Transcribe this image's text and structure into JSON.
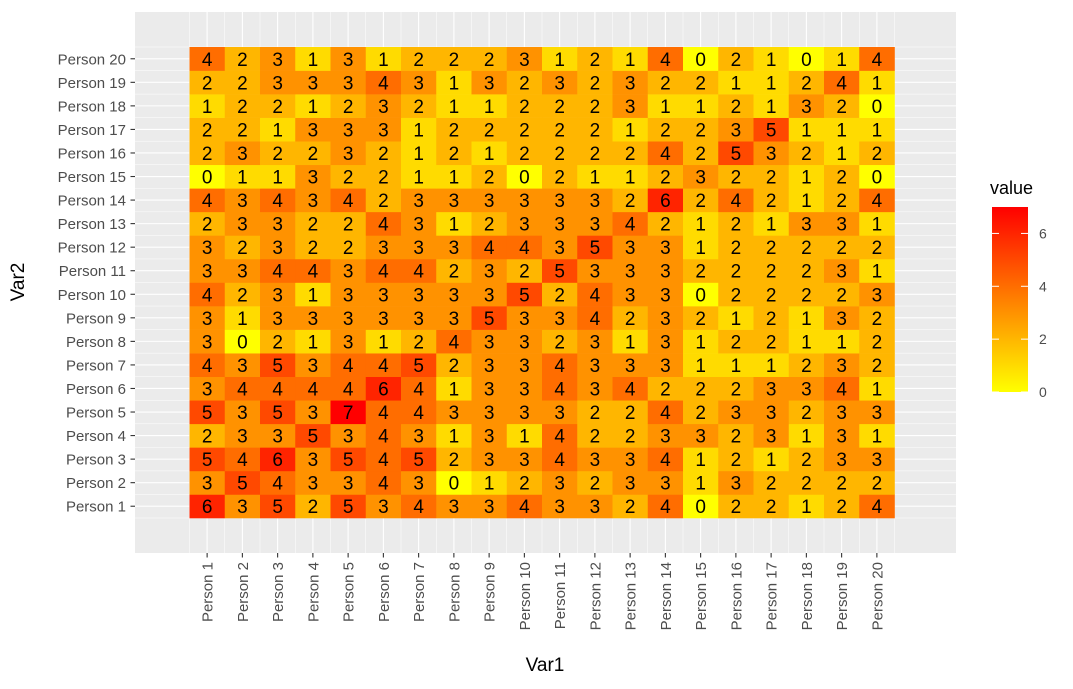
{
  "chart_data": {
    "type": "heatmap",
    "xlabel": "Var1",
    "ylabel": "Var2",
    "x_categories": [
      "Person 1",
      "Person 2",
      "Person 3",
      "Person 4",
      "Person 5",
      "Person 6",
      "Person 7",
      "Person 8",
      "Person 9",
      "Person 10",
      "Person 11",
      "Person 12",
      "Person 13",
      "Person 14",
      "Person 15",
      "Person 16",
      "Person 17",
      "Person 18",
      "Person 19",
      "Person 20"
    ],
    "y_categories": [
      "Person 1",
      "Person 2",
      "Person 3",
      "Person 4",
      "Person 5",
      "Person 6",
      "Person 7",
      "Person 8",
      "Person 9",
      "Person 10",
      "Person 11",
      "Person 12",
      "Person 13",
      "Person 14",
      "Person 15",
      "Person 16",
      "Person 17",
      "Person 18",
      "Person 19",
      "Person 20"
    ],
    "values": [
      [
        6,
        3,
        5,
        2,
        5,
        3,
        4,
        3,
        3,
        4,
        3,
        3,
        2,
        4,
        0,
        2,
        2,
        1,
        2,
        4
      ],
      [
        3,
        5,
        4,
        3,
        3,
        4,
        3,
        0,
        1,
        2,
        3,
        2,
        3,
        3,
        1,
        3,
        2,
        2,
        2,
        2
      ],
      [
        5,
        4,
        6,
        3,
        5,
        4,
        5,
        2,
        3,
        3,
        4,
        3,
        3,
        4,
        1,
        2,
        1,
        2,
        3,
        3
      ],
      [
        2,
        3,
        3,
        5,
        3,
        4,
        3,
        1,
        3,
        1,
        4,
        2,
        2,
        3,
        3,
        2,
        3,
        1,
        3,
        1
      ],
      [
        5,
        3,
        5,
        3,
        7,
        4,
        4,
        3,
        3,
        3,
        3,
        2,
        2,
        4,
        2,
        3,
        3,
        2,
        3,
        3
      ],
      [
        3,
        4,
        4,
        4,
        4,
        6,
        4,
        1,
        3,
        3,
        4,
        3,
        4,
        2,
        2,
        2,
        3,
        3,
        4,
        1
      ],
      [
        4,
        3,
        5,
        3,
        4,
        4,
        5,
        2,
        3,
        3,
        4,
        3,
        3,
        3,
        1,
        1,
        1,
        2,
        3,
        2
      ],
      [
        3,
        0,
        2,
        1,
        3,
        1,
        2,
        4,
        3,
        3,
        2,
        3,
        1,
        3,
        1,
        2,
        2,
        1,
        1,
        2
      ],
      [
        3,
        1,
        3,
        3,
        3,
        3,
        3,
        3,
        5,
        3,
        3,
        4,
        2,
        3,
        2,
        1,
        2,
        1,
        3,
        2
      ],
      [
        4,
        2,
        3,
        1,
        3,
        3,
        3,
        3,
        3,
        5,
        2,
        4,
        3,
        3,
        0,
        2,
        2,
        2,
        2,
        3
      ],
      [
        3,
        3,
        4,
        4,
        3,
        4,
        4,
        2,
        3,
        2,
        5,
        3,
        3,
        3,
        2,
        2,
        2,
        2,
        3,
        1
      ],
      [
        3,
        2,
        3,
        2,
        2,
        3,
        3,
        3,
        4,
        4,
        3,
        5,
        3,
        3,
        1,
        2,
        2,
        2,
        2,
        2
      ],
      [
        2,
        3,
        3,
        2,
        2,
        4,
        3,
        1,
        2,
        3,
        3,
        3,
        4,
        2,
        1,
        2,
        1,
        3,
        3,
        1
      ],
      [
        4,
        3,
        4,
        3,
        4,
        2,
        3,
        3,
        3,
        3,
        3,
        3,
        2,
        6,
        2,
        4,
        2,
        1,
        2,
        4
      ],
      [
        0,
        1,
        1,
        3,
        2,
        2,
        1,
        1,
        2,
        0,
        2,
        1,
        1,
        2,
        3,
        2,
        2,
        1,
        2,
        0
      ],
      [
        2,
        3,
        2,
        2,
        3,
        2,
        1,
        2,
        1,
        2,
        2,
        2,
        2,
        4,
        2,
        5,
        3,
        2,
        1,
        2
      ],
      [
        2,
        2,
        1,
        3,
        3,
        3,
        1,
        2,
        2,
        2,
        2,
        2,
        1,
        2,
        2,
        3,
        5,
        1,
        1,
        1
      ],
      [
        1,
        2,
        2,
        1,
        2,
        3,
        2,
        1,
        1,
        2,
        2,
        2,
        3,
        1,
        1,
        2,
        1,
        3,
        2,
        0
      ],
      [
        2,
        2,
        3,
        3,
        3,
        4,
        3,
        1,
        3,
        2,
        3,
        2,
        3,
        2,
        2,
        1,
        1,
        2,
        4,
        1
      ],
      [
        4,
        2,
        3,
        1,
        3,
        1,
        2,
        2,
        2,
        3,
        1,
        2,
        1,
        4,
        0,
        2,
        1,
        0,
        1,
        4
      ]
    ],
    "value_range": [
      0,
      7
    ],
    "legend": {
      "title": "value",
      "ticks": [
        0,
        2,
        4,
        6
      ],
      "low_color": "#ffff00",
      "high_color": "#ff0000",
      "placement": "right"
    },
    "panel_background": "#ebebeb",
    "grid_color": "#ffffff",
    "grid": true
  }
}
